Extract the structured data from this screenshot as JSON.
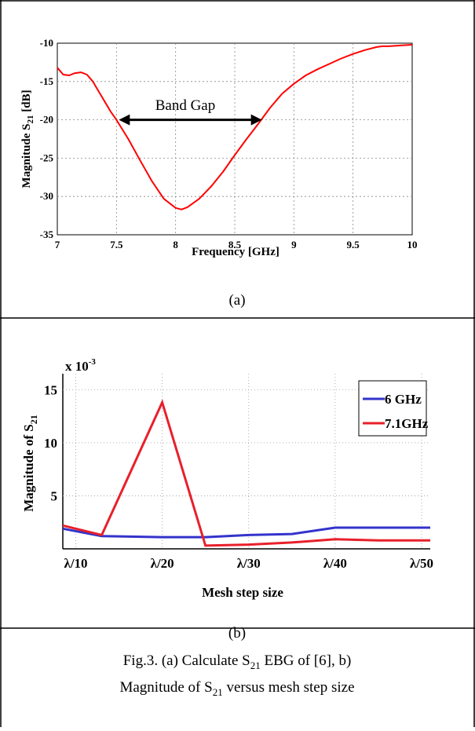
{
  "chart_data": [
    {
      "type": "line",
      "panel_label": "(a)",
      "xlabel": "Frequency [GHz]",
      "ylabel": "Magnitude S",
      "ylabel_sub": "21",
      "ylabel_unit": " [dB]",
      "xlim": [
        7,
        10
      ],
      "ylim": [
        -35,
        -10
      ],
      "xticks": [
        "7",
        "7.5",
        "8",
        "8.5",
        "9",
        "9.5",
        "10"
      ],
      "yticks": [
        "-10",
        "-15",
        "-20",
        "-25",
        "-30",
        "-35"
      ],
      "grid": true,
      "annotation": {
        "text": "Band Gap",
        "x_start": 7.52,
        "x_end": 8.73,
        "y": -20
      },
      "series": [
        {
          "color": "#ff0000",
          "x": [
            7.0,
            7.05,
            7.1,
            7.15,
            7.2,
            7.25,
            7.3,
            7.35,
            7.4,
            7.45,
            7.5,
            7.6,
            7.7,
            7.8,
            7.9,
            8.0,
            8.05,
            8.1,
            8.2,
            8.3,
            8.4,
            8.5,
            8.6,
            8.7,
            8.8,
            8.9,
            9.0,
            9.1,
            9.2,
            9.3,
            9.4,
            9.5,
            9.6,
            9.7,
            9.75,
            9.8,
            9.9,
            10.0
          ],
          "y": [
            -13.2,
            -14.1,
            -14.2,
            -13.9,
            -13.8,
            -14.1,
            -15.0,
            -16.3,
            -17.6,
            -18.9,
            -20.0,
            -22.5,
            -25.3,
            -28.0,
            -30.3,
            -31.5,
            -31.7,
            -31.4,
            -30.3,
            -28.7,
            -26.8,
            -24.6,
            -22.5,
            -20.5,
            -18.4,
            -16.6,
            -15.3,
            -14.2,
            -13.4,
            -12.7,
            -12.0,
            -11.4,
            -10.9,
            -10.5,
            -10.4,
            -10.4,
            -10.3,
            -10.2
          ]
        }
      ]
    },
    {
      "type": "line",
      "panel_label": "(b)",
      "xlabel": "Mesh step size",
      "ylabel": "Magnitude of S",
      "ylabel_sub": "21",
      "multiplier": "x 10",
      "multiplier_exp": "-3",
      "categories": [
        "λ/10",
        "λ/20",
        "λ/30",
        "λ/40",
        "λ/50"
      ],
      "xlim": [
        0.85,
        5.1
      ],
      "ylim": [
        0,
        16.5
      ],
      "yticks": [
        "5",
        "10",
        "15"
      ],
      "grid": true,
      "legend_position": "top-right",
      "series": [
        {
          "name": "6 GHz",
          "color": "#3333cc",
          "x": [
            0.85,
            1.3,
            2.0,
            2.5,
            3.0,
            3.5,
            4.0,
            4.5,
            5.1
          ],
          "y": [
            1.9,
            1.2,
            1.1,
            1.1,
            1.3,
            1.4,
            2.0,
            2.0,
            2.0
          ]
        },
        {
          "name": "7.1GHz",
          "color": "#e8202a",
          "x": [
            0.85,
            1.3,
            2.0,
            2.5,
            3.0,
            3.5,
            4.0,
            4.5,
            5.1
          ],
          "y": [
            2.2,
            1.3,
            13.8,
            0.3,
            0.4,
            0.6,
            0.9,
            0.8,
            0.8
          ]
        }
      ]
    }
  ],
  "caption": {
    "line1_pre": "Fig.3. (a) Calculate S",
    "line1_sub": "21",
    "line1_post": " EBG of [6], b)",
    "line2_pre": "Magnitude of S",
    "line2_sub": "21",
    "line2_post": " versus mesh step size"
  }
}
